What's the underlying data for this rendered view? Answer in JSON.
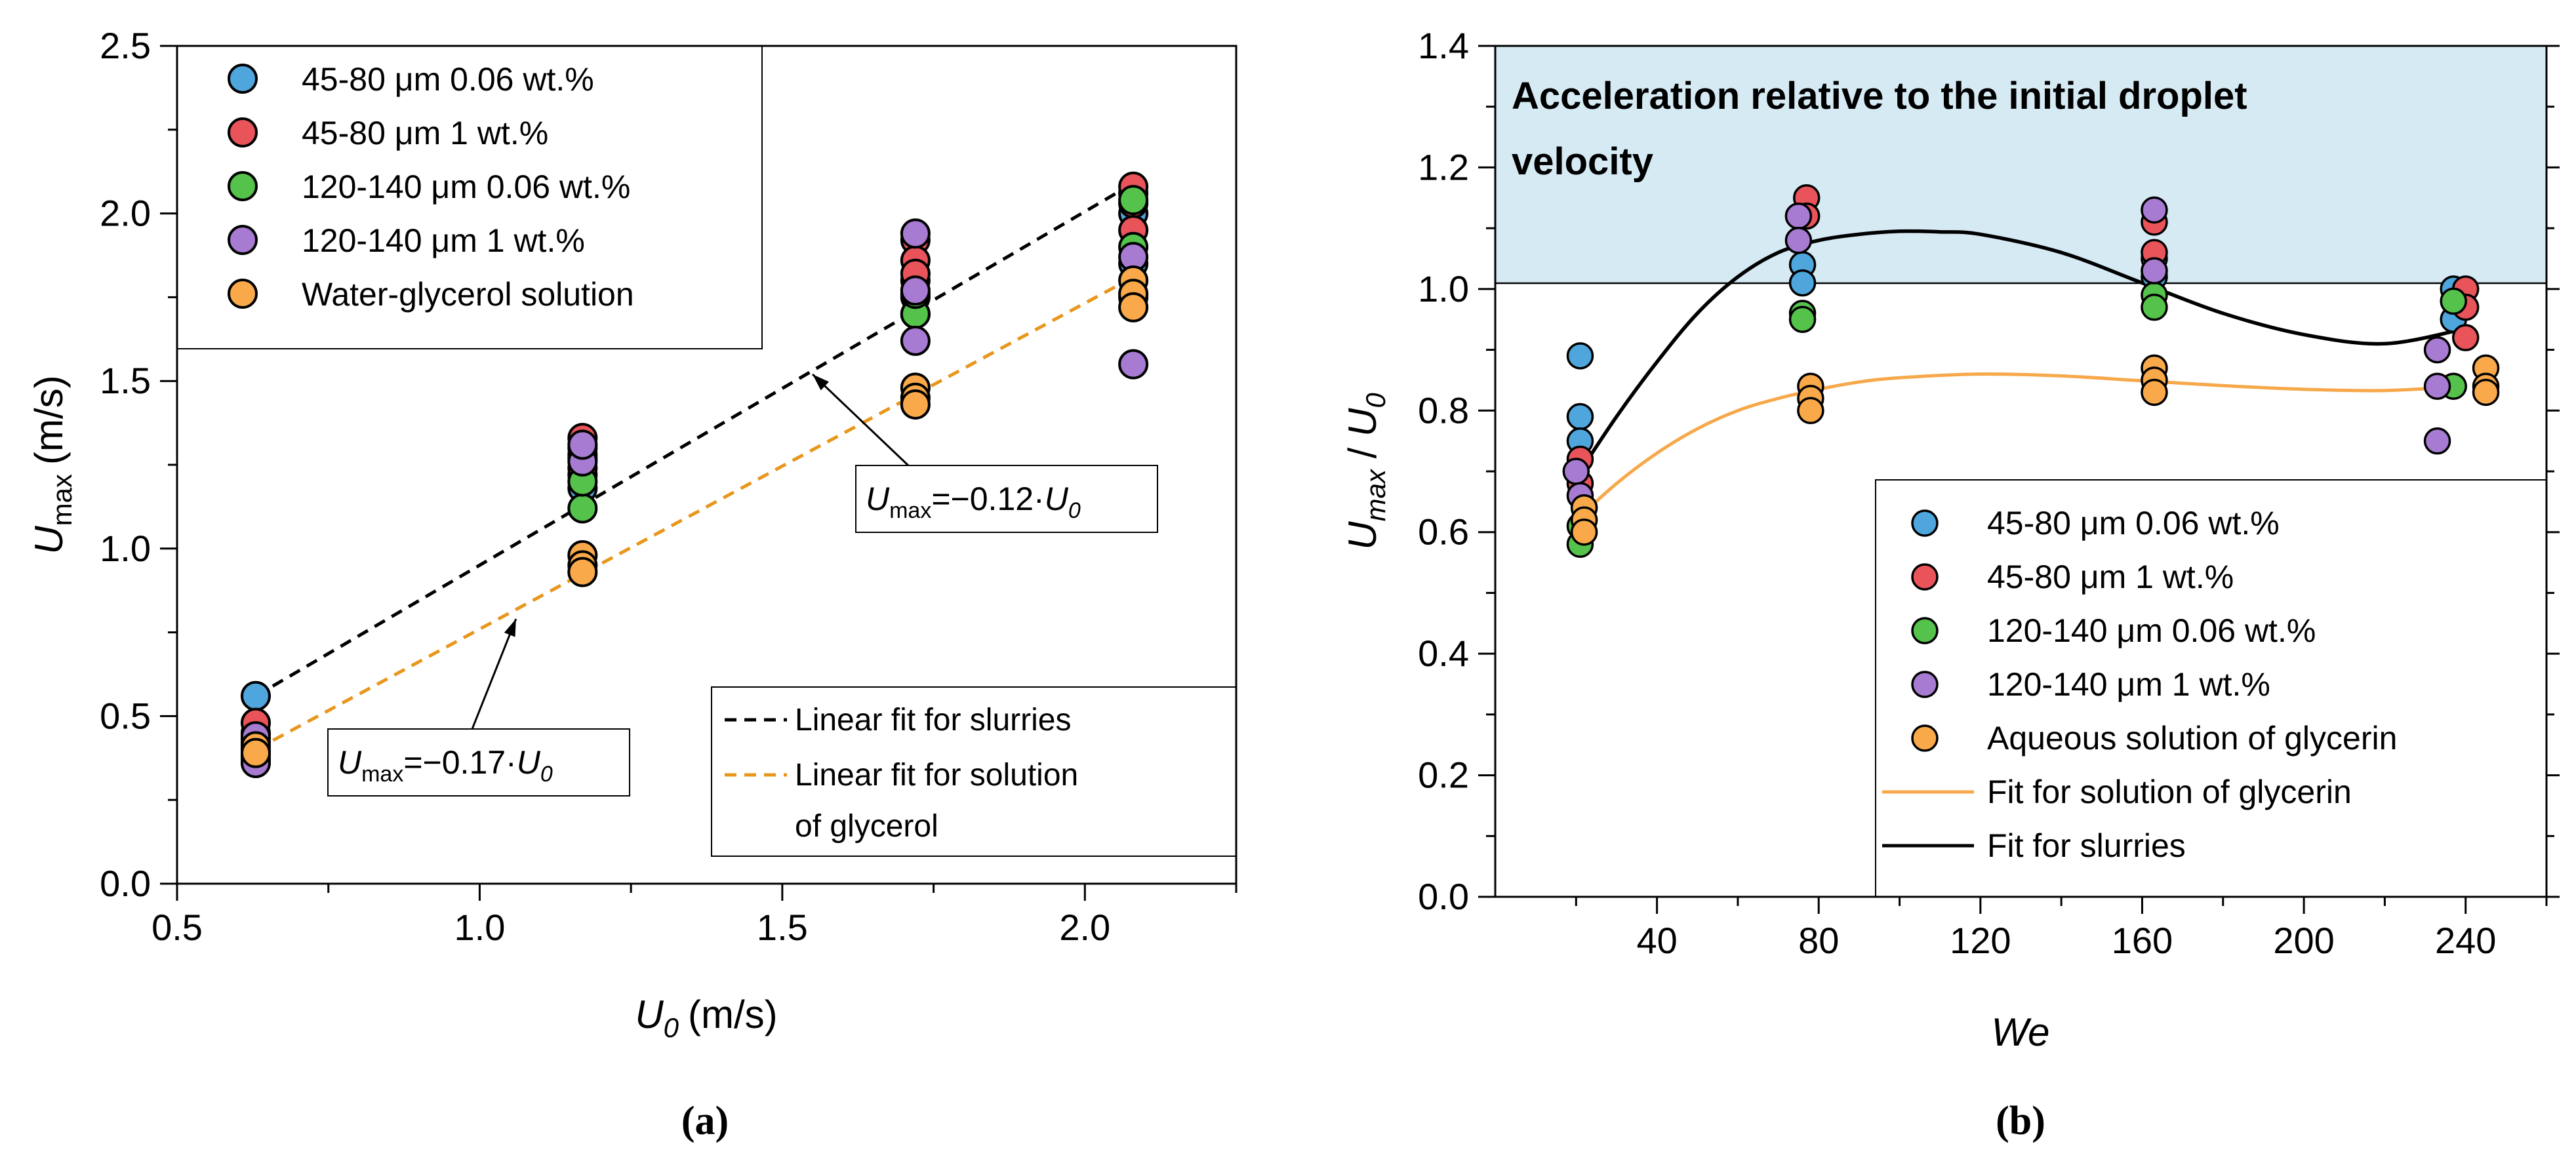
{
  "colors": {
    "s1": "#4ea6dc",
    "s2": "#e9545a",
    "s3": "#55c24b",
    "s4": "#a67bd1",
    "s5": "#f9a94a",
    "fit_slurry_a": "#000000",
    "fit_glycerol_a": "#e8961c",
    "fit_glycerin_b": "#f6a84a",
    "fit_slurry_b": "#000000",
    "region_fill": "#d6eaf4",
    "region_text": "#2e6f9a"
  },
  "chart_data": [
    {
      "panel": "(a)",
      "type": "scatter",
      "xlabel_main": "U",
      "xlabel_sub": "0",
      "xlabel_unit": "(m/s)",
      "ylabel_main": "U",
      "ylabel_sub": "max",
      "ylabel_unit": "(m/s)",
      "xlim": [
        0.5,
        2.25
      ],
      "ylim": [
        0.0,
        2.5
      ],
      "xticks": [
        0.5,
        1.0,
        1.5,
        2.0
      ],
      "xtick_labels": [
        "0.5",
        "1.0",
        "1.5",
        "2.0"
      ],
      "yticks": [
        0.0,
        0.5,
        1.0,
        1.5,
        2.0,
        2.5
      ],
      "ytick_labels": [
        "0.0",
        "0.5",
        "1.0",
        "1.5",
        "2.0",
        "2.5"
      ],
      "series": [
        {
          "name": "45-80 μm 0.06 wt.%",
          "color_key": "s1",
          "x": [
            0.63,
            0.63,
            0.63,
            1.17,
            1.17,
            1.17,
            1.72,
            1.72,
            1.72,
            2.08,
            2.08,
            2.08
          ],
          "y": [
            0.56,
            0.45,
            0.39,
            1.3,
            1.22,
            1.18,
            1.8,
            1.75,
            1.7,
            2.06,
            2.0,
            1.85
          ]
        },
        {
          "name": "45-80 μm 1 wt.%",
          "color_key": "s2",
          "x": [
            0.63,
            0.63,
            0.63,
            1.17,
            1.17,
            1.17,
            1.72,
            1.72,
            1.72,
            2.08,
            2.08,
            2.08
          ],
          "y": [
            0.48,
            0.43,
            0.38,
            1.33,
            1.28,
            1.24,
            1.92,
            1.86,
            1.82,
            2.08,
            2.03,
            1.95
          ]
        },
        {
          "name": "120-140 μm 0.06 wt.%",
          "color_key": "s3",
          "x": [
            0.63,
            0.63,
            1.17,
            1.17,
            1.72,
            1.72,
            2.08,
            2.08
          ],
          "y": [
            0.42,
            0.37,
            1.12,
            1.2,
            1.7,
            1.76,
            2.04,
            1.9
          ]
        },
        {
          "name": "120-140 μm 1 wt.%",
          "color_key": "s4",
          "x": [
            0.63,
            0.63,
            0.63,
            1.17,
            1.17,
            1.17,
            1.72,
            1.72,
            1.72,
            2.08,
            2.08,
            2.08
          ],
          "y": [
            0.44,
            0.4,
            0.36,
            1.27,
            1.26,
            1.31,
            1.94,
            1.77,
            1.62,
            1.87,
            1.75,
            1.55
          ]
        },
        {
          "name": "Water-glycerol solution",
          "color_key": "s5",
          "x": [
            0.63,
            0.63,
            1.17,
            1.17,
            1.17,
            1.72,
            1.72,
            1.72,
            2.08,
            2.08,
            2.08
          ],
          "y": [
            0.41,
            0.39,
            0.98,
            0.95,
            0.93,
            1.48,
            1.45,
            1.43,
            1.8,
            1.76,
            1.72
          ]
        }
      ],
      "fits": [
        {
          "name": "Linear fit for slurries",
          "color_key": "fit_slurry_a",
          "dash": true,
          "x": [
            0.63,
            2.08
          ],
          "y": [
            0.56,
            2.09
          ]
        },
        {
          "name": "Linear fit for solution of glycerol",
          "color_key": "fit_glycerol_a",
          "dash": true,
          "x": [
            0.63,
            2.08
          ],
          "y": [
            0.4,
            1.81
          ]
        }
      ],
      "legend_fits": {
        "slurries": "Linear fit for slurries",
        "glycerol_line1": "Linear fit for solution",
        "glycerol_line2": "of glycerol"
      },
      "annotations": [
        {
          "id": "slurry",
          "main": "U",
          "sub": "max",
          "eq": "=−0.12·",
          "var": "U",
          "var_sub": "0",
          "arrow_to": [
            1.55,
            1.52
          ]
        },
        {
          "id": "glycerol",
          "main": "U",
          "sub": "max",
          "eq": "=−0.17·",
          "var": "U",
          "var_sub": "0",
          "arrow_to": [
            1.06,
            0.79
          ]
        }
      ]
    },
    {
      "panel": "(b)",
      "type": "scatter",
      "xlabel": "We",
      "ylabel_main": "U",
      "ylabel_sub": "max",
      "ylabel_sep": " / ",
      "ylabel_den": "U",
      "ylabel_den_sub": "0",
      "xlim": [
        0,
        260
      ],
      "ylim": [
        0.0,
        1.4
      ],
      "xticks": [
        40,
        80,
        120,
        160,
        200,
        240
      ],
      "xtick_labels": [
        "40",
        "80",
        "120",
        "160",
        "200",
        "240"
      ],
      "yticks": [
        0.0,
        0.2,
        0.4,
        0.6,
        0.8,
        1.0,
        1.2,
        1.4
      ],
      "ytick_labels": [
        "0.0",
        "0.2",
        "0.4",
        "0.6",
        "0.8",
        "1.0",
        "1.2",
        "1.4"
      ],
      "reference_y": 1.0,
      "region_label_line1": "Acceleration relative to the initial droplet",
      "region_label_line2": "velocity",
      "series": [
        {
          "name": "45-80 μm 0.06 wt.%",
          "color_key": "s1",
          "x": [
            21,
            21,
            21,
            76,
            76,
            163,
            163,
            237,
            237
          ],
          "y": [
            0.89,
            0.79,
            0.75,
            1.04,
            1.01,
            1.05,
            1.02,
            1.0,
            0.95
          ]
        },
        {
          "name": "45-80 μm 1 wt.%",
          "color_key": "s2",
          "x": [
            21,
            21,
            77,
            77,
            163,
            163,
            240,
            240,
            240
          ],
          "y": [
            0.72,
            0.68,
            1.15,
            1.12,
            1.11,
            1.06,
            1.0,
            0.97,
            0.92
          ]
        },
        {
          "name": "120-140 μm 0.06 wt.%",
          "color_key": "s3",
          "x": [
            21,
            21,
            76,
            76,
            163,
            163,
            237,
            237
          ],
          "y": [
            0.58,
            0.61,
            0.96,
            0.95,
            0.99,
            0.97,
            0.98,
            0.84
          ]
        },
        {
          "name": "120-140 μm 1 wt.%",
          "color_key": "s4",
          "x": [
            20,
            21,
            75,
            75,
            163,
            163,
            233,
            233,
            233
          ],
          "y": [
            0.7,
            0.66,
            1.12,
            1.08,
            1.13,
            1.03,
            0.9,
            0.84,
            0.75
          ]
        },
        {
          "name": "Aqueous solution of glycerin",
          "color_key": "s5",
          "x": [
            22,
            22,
            22,
            78,
            78,
            78,
            163,
            163,
            163,
            245,
            245,
            245
          ],
          "y": [
            0.64,
            0.62,
            0.6,
            0.84,
            0.82,
            0.8,
            0.87,
            0.85,
            0.83,
            0.87,
            0.84,
            0.83
          ]
        }
      ],
      "fits": [
        {
          "name": "Fit for solution of glycerin",
          "color_key": "fit_glycerin_b",
          "x": [
            20,
            30,
            40,
            50,
            60,
            70,
            80,
            90,
            100,
            120,
            140,
            160,
            180,
            200,
            220,
            240
          ],
          "y": [
            0.62,
            0.68,
            0.73,
            0.77,
            0.8,
            0.82,
            0.835,
            0.847,
            0.854,
            0.86,
            0.857,
            0.849,
            0.841,
            0.835,
            0.833,
            0.84
          ]
        },
        {
          "name": "Fit for slurries",
          "color_key": "fit_slurry_b",
          "x": [
            20,
            30,
            40,
            50,
            60,
            70,
            80,
            90,
            100,
            110,
            120,
            140,
            160,
            180,
            200,
            220,
            240
          ],
          "y": [
            0.69,
            0.79,
            0.88,
            0.96,
            1.02,
            1.06,
            1.08,
            1.09,
            1.095,
            1.094,
            1.09,
            1.06,
            1.01,
            0.96,
            0.925,
            0.91,
            0.935
          ]
        }
      ]
    }
  ]
}
